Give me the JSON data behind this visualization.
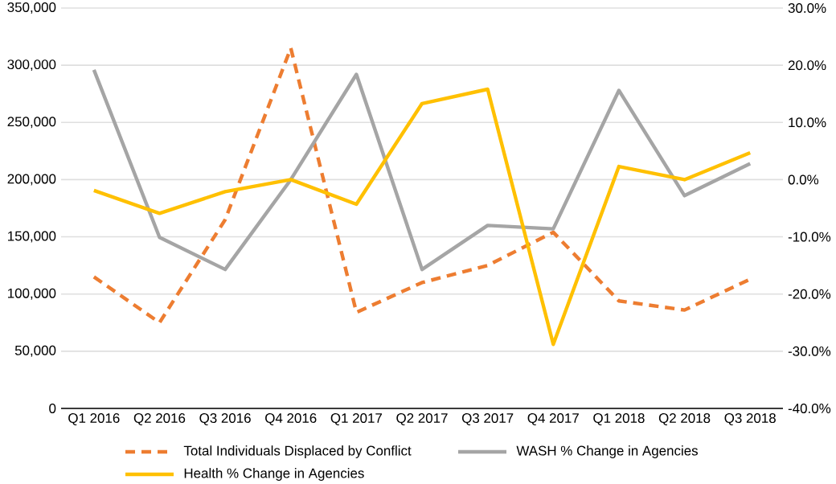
{
  "chart_data": {
    "type": "line",
    "categories": [
      "Q1 2016",
      "Q2 2016",
      "Q3 2016",
      "Q4 2016",
      "Q1 2017",
      "Q2 2017",
      "Q3 2017",
      "Q4 2017",
      "Q1 2018",
      "Q2 2018",
      "Q3 2018"
    ],
    "series": [
      {
        "name": "Total Individuals Displaced by Conflict",
        "color": "#ed7d31",
        "line_style": "dashed",
        "values": [
          115000,
          75000,
          165000,
          315000,
          84000,
          110000,
          125000,
          154000,
          94000,
          86000,
          113000
        ]
      },
      {
        "name": "WASH % Change in Agencies",
        "color": "#a5a5a5",
        "axis": "y2",
        "values": [
          19.2,
          -10.1,
          -15.7,
          0.0,
          18.4,
          -15.7,
          -8.0,
          -8.6,
          15.6,
          -2.8,
          2.8
        ]
      },
      {
        "name": "Health % Change in Agencies",
        "color": "#ffc000",
        "axis": "y2",
        "values": [
          -1.9,
          -5.9,
          -2.1,
          0.0,
          -4.3,
          13.3,
          15.8,
          -28.8,
          2.3,
          0.0,
          4.7
        ]
      }
    ],
    "ylim": [
      0,
      350000
    ],
    "yticks": [
      {
        "value": 0,
        "label": "0"
      },
      {
        "value": 50000,
        "label": "50,000"
      },
      {
        "value": 100000,
        "label": "100,000"
      },
      {
        "value": 150000,
        "label": "150,000"
      },
      {
        "value": 200000,
        "label": "200,000"
      },
      {
        "value": 250000,
        "label": "250,000"
      },
      {
        "value": 300000,
        "label": "300,000"
      },
      {
        "value": 350000,
        "label": "350,000"
      }
    ],
    "y2lim": [
      -40,
      30
    ],
    "y2ticks": [
      {
        "value": -40,
        "label": "-40.0%"
      },
      {
        "value": -30,
        "label": "-30.0%"
      },
      {
        "value": -20,
        "label": "-20.0%"
      },
      {
        "value": -10,
        "label": "-10.0%"
      },
      {
        "value": 0,
        "label": "0.0%"
      },
      {
        "value": 10,
        "label": "10.0%"
      },
      {
        "value": 20,
        "label": "20.0%"
      },
      {
        "value": 30,
        "label": "30.0%"
      }
    ],
    "grid": "y",
    "legend": "bottom",
    "marker": "none"
  }
}
